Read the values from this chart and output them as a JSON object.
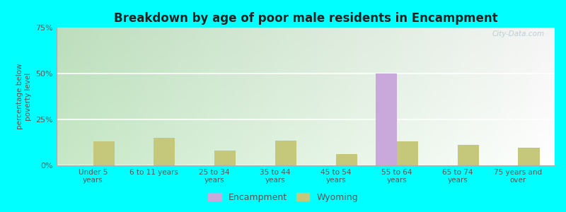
{
  "title": "Breakdown by age of poor male residents in Encampment",
  "categories": [
    "Under 5\nyears",
    "6 to 11 years",
    "25 to 34\nyears",
    "35 to 44\nyears",
    "45 to 54\nyears",
    "55 to 64\nyears",
    "65 to 74\nyears",
    "75 years and\nover"
  ],
  "encampment_values": [
    0,
    0,
    0,
    0,
    0,
    50.0,
    0,
    0
  ],
  "wyoming_values": [
    13.0,
    15.0,
    8.0,
    13.5,
    6.0,
    13.0,
    11.0,
    9.5
  ],
  "encampment_color": "#c9a8dc",
  "wyoming_color": "#c5c87a",
  "ylabel": "percentage below\npoverty level",
  "ylim": [
    0,
    75
  ],
  "yticks": [
    0,
    25,
    50,
    75
  ],
  "ytick_labels": [
    "0%",
    "25%",
    "50%",
    "75%"
  ],
  "outer_bg": "#00ffff",
  "plot_bg_left": "#c8e6b0",
  "plot_bg_right": "#f0f8f0",
  "watermark": "City-Data.com",
  "bar_width": 0.35,
  "legend_encampment": "Encampment",
  "legend_wyoming": "Wyoming"
}
